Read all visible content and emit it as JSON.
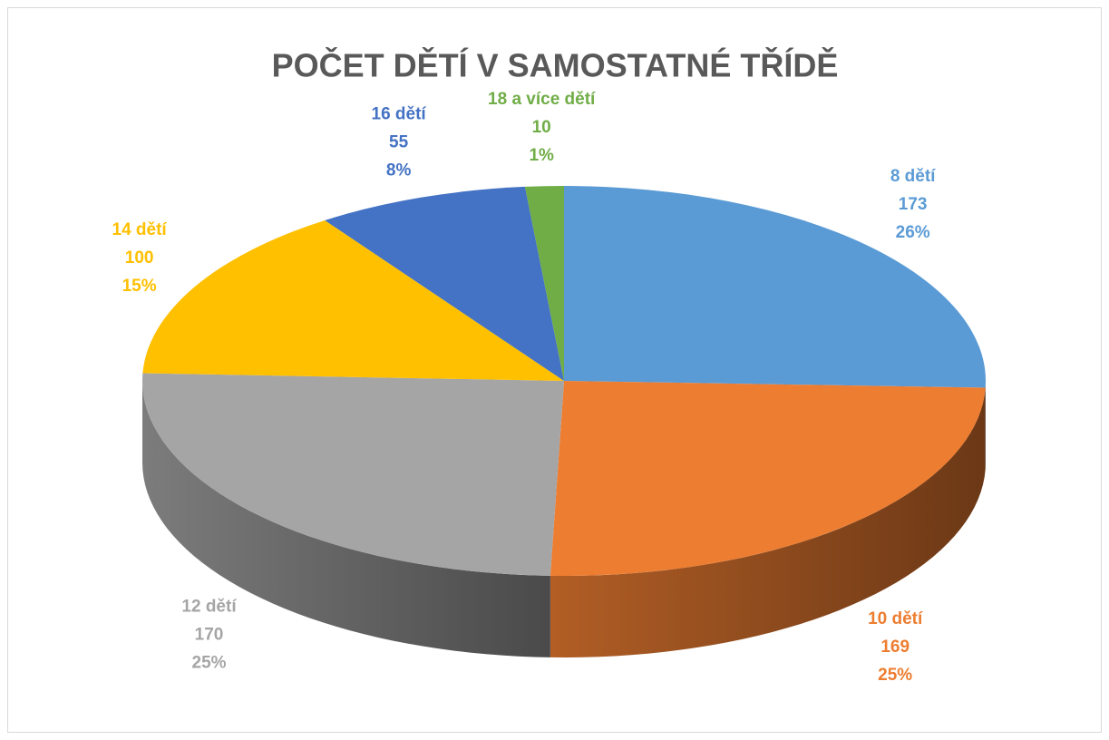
{
  "chart_data": {
    "type": "pie",
    "title": "POČET DĚTÍ V SAMOSTATNÉ TŘÍDĚ",
    "categories": [
      "8 dětí",
      "10 dětí",
      "12 dětí",
      "14 dětí",
      "16 dětí",
      "18 a více dětí"
    ],
    "values": [
      173,
      169,
      170,
      100,
      55,
      10
    ],
    "percentages": [
      26,
      25,
      25,
      15,
      8,
      1
    ],
    "percent_labels": [
      "26%",
      "25%",
      "25%",
      "15%",
      "8%",
      "1%"
    ],
    "colors": [
      "#5b9bd5",
      "#ed7d31",
      "#a5a5a5",
      "#ffc000",
      "#4472c4",
      "#70ad47"
    ]
  }
}
